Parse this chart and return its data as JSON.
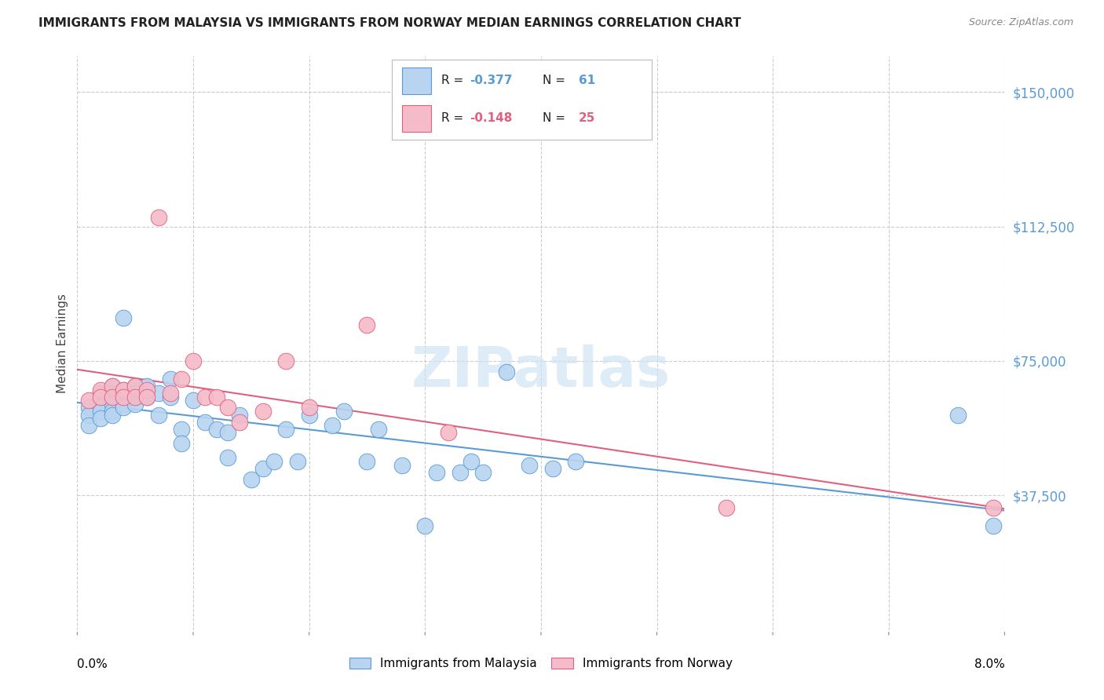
{
  "title": "IMMIGRANTS FROM MALAYSIA VS IMMIGRANTS FROM NORWAY MEDIAN EARNINGS CORRELATION CHART",
  "source": "Source: ZipAtlas.com",
  "ylabel": "Median Earnings",
  "yticks": [
    37500,
    75000,
    112500,
    150000
  ],
  "ytick_labels": [
    "$37,500",
    "$75,000",
    "$112,500",
    "$150,000"
  ],
  "xmin": 0.0,
  "xmax": 0.08,
  "ymin": 0,
  "ymax": 160000,
  "watermark": "ZIPatlas",
  "series1_color": "#b8d4f0",
  "series2_color": "#f5bbc8",
  "line1_color": "#5b9bd5",
  "line2_color": "#e06080",
  "malaysia_x": [
    0.001,
    0.001,
    0.001,
    0.002,
    0.002,
    0.002,
    0.002,
    0.002,
    0.003,
    0.003,
    0.003,
    0.003,
    0.003,
    0.003,
    0.003,
    0.004,
    0.004,
    0.004,
    0.004,
    0.004,
    0.004,
    0.005,
    0.005,
    0.005,
    0.005,
    0.006,
    0.006,
    0.007,
    0.007,
    0.008,
    0.008,
    0.009,
    0.009,
    0.01,
    0.011,
    0.012,
    0.013,
    0.013,
    0.014,
    0.015,
    0.016,
    0.017,
    0.018,
    0.019,
    0.02,
    0.022,
    0.023,
    0.025,
    0.026,
    0.028,
    0.03,
    0.031,
    0.033,
    0.034,
    0.035,
    0.037,
    0.039,
    0.041,
    0.043,
    0.076,
    0.079
  ],
  "malaysia_y": [
    62000,
    60000,
    57000,
    66000,
    64000,
    62000,
    61000,
    59000,
    68000,
    66000,
    65000,
    64000,
    63000,
    61000,
    60000,
    67000,
    65000,
    64000,
    63000,
    62000,
    87000,
    68000,
    66000,
    65000,
    63000,
    68000,
    65000,
    66000,
    60000,
    70000,
    65000,
    56000,
    52000,
    64000,
    58000,
    56000,
    55000,
    48000,
    60000,
    42000,
    45000,
    47000,
    56000,
    47000,
    60000,
    57000,
    61000,
    47000,
    56000,
    46000,
    29000,
    44000,
    44000,
    47000,
    44000,
    72000,
    46000,
    45000,
    47000,
    60000,
    29000
  ],
  "norway_x": [
    0.001,
    0.002,
    0.002,
    0.003,
    0.003,
    0.004,
    0.004,
    0.005,
    0.005,
    0.006,
    0.006,
    0.007,
    0.008,
    0.009,
    0.01,
    0.011,
    0.012,
    0.013,
    0.014,
    0.016,
    0.018,
    0.02,
    0.025,
    0.032,
    0.056,
    0.079
  ],
  "norway_y": [
    64000,
    67000,
    65000,
    68000,
    65000,
    67000,
    65000,
    68000,
    65000,
    67000,
    65000,
    115000,
    66000,
    70000,
    75000,
    65000,
    65000,
    62000,
    58000,
    61000,
    75000,
    62000,
    85000,
    55000,
    34000,
    34000
  ]
}
